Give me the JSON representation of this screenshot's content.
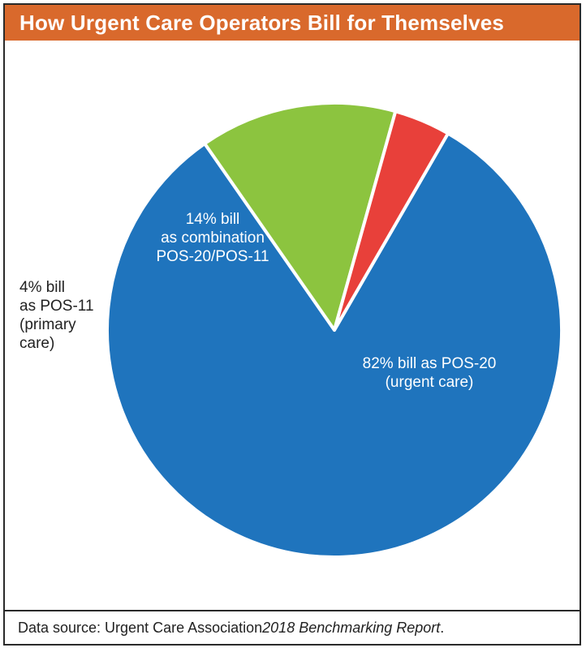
{
  "header": {
    "title": "How Urgent Care Operators Bill for Themselves"
  },
  "footer": {
    "prefix": "Data source: Urgent Care Association ",
    "report": "2018 Benchmarking Report",
    "suffix": "."
  },
  "colors": {
    "title_bg": "#d9692c",
    "urgent": "#1f74bd",
    "combination": "#8cc43f",
    "primary": "#e8403a"
  },
  "chart_data": {
    "type": "pie",
    "title": "How Urgent Care Operators Bill for Themselves",
    "slices": [
      {
        "value": 82,
        "color": "#1f74bd",
        "label_lines": [
          "82% bill as POS-20",
          "(urgent care)"
        ]
      },
      {
        "value": 14,
        "color": "#8cc43f",
        "label_lines": [
          "14% bill",
          "as combination",
          "POS-20/POS-11"
        ]
      },
      {
        "value": 4,
        "color": "#e8403a",
        "label_lines": [
          "4% bill",
          "as POS-11",
          "(primary",
          "care)"
        ]
      }
    ]
  }
}
